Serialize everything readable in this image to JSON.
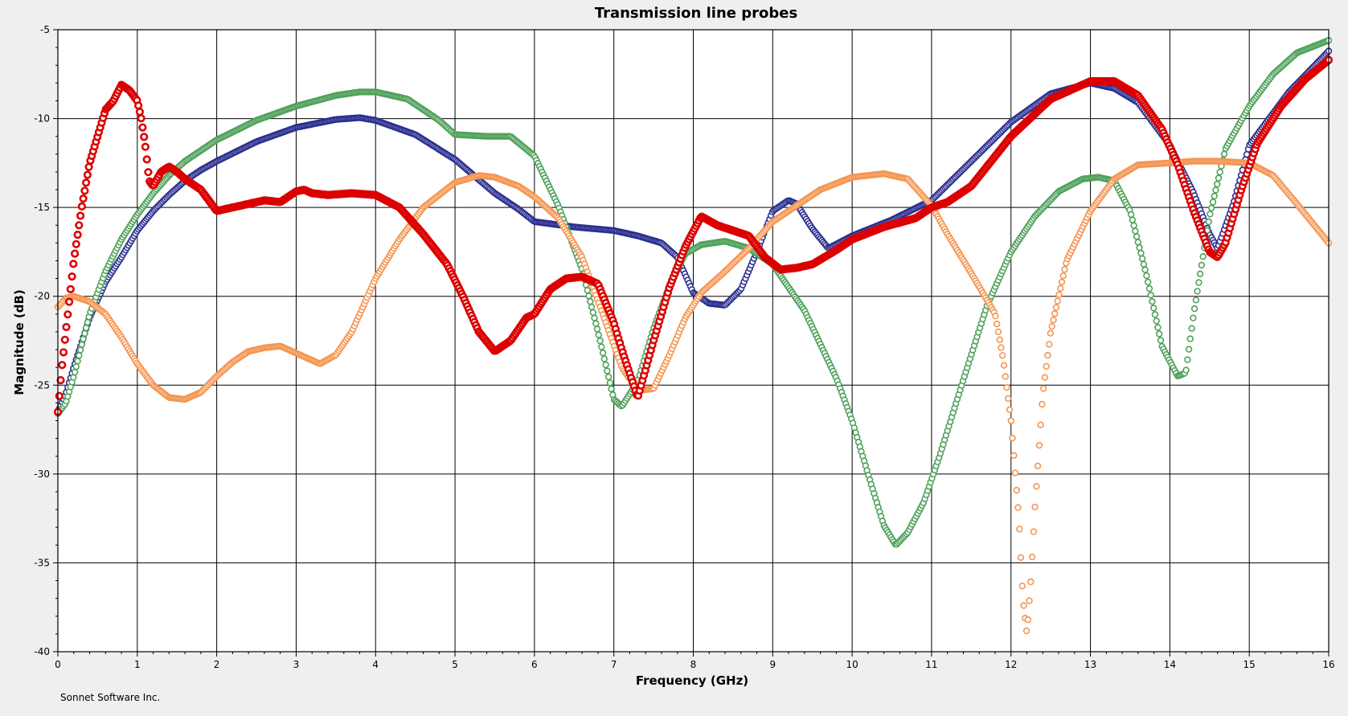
{
  "chart_data": {
    "type": "scatter",
    "title": "Transmission line probes",
    "xlabel": "Frequency (GHz)",
    "ylabel": "Magnitude (dB)",
    "xlim": [
      0,
      16
    ],
    "ylim": [
      -40,
      -5
    ],
    "xticks": [
      0,
      1,
      2,
      3,
      4,
      5,
      6,
      7,
      8,
      9,
      10,
      11,
      12,
      13,
      14,
      15,
      16
    ],
    "yticks": [
      -5,
      -10,
      -15,
      -20,
      -25,
      -30,
      -35,
      -40
    ],
    "grid": true,
    "marker": "open-circle",
    "series": [
      {
        "color": "#2b2f8f",
        "x": [
          0,
          0.1,
          0.2,
          0.4,
          0.6,
          0.8,
          1.0,
          1.2,
          1.4,
          1.6,
          1.8,
          2.0,
          2.5,
          3.0,
          3.5,
          3.8,
          4.0,
          4.5,
          5.0,
          5.5,
          5.8,
          6.0,
          6.5,
          7.0,
          7.3,
          7.6,
          7.8,
          8.0,
          8.2,
          8.4,
          8.6,
          8.8,
          9.0,
          9.2,
          9.3,
          9.5,
          9.7,
          10.0,
          10.5,
          11.0,
          11.5,
          12.0,
          12.5,
          13.0,
          13.3,
          13.6,
          14.0,
          14.3,
          14.5,
          14.6,
          14.8,
          15.0,
          15.5,
          16.0
        ],
        "y": [
          -26.5,
          -25.5,
          -24,
          -21.2,
          -19.2,
          -17.8,
          -16.3,
          -15.2,
          -14.3,
          -13.5,
          -12.9,
          -12.4,
          -11.3,
          -10.5,
          -10.05,
          -9.95,
          -10.1,
          -10.9,
          -12.3,
          -14.2,
          -15.1,
          -15.8,
          -16.1,
          -16.3,
          -16.6,
          -17.0,
          -17.8,
          -19.8,
          -20.4,
          -20.5,
          -19.6,
          -17.5,
          -15.2,
          -14.6,
          -14.8,
          -16.2,
          -17.3,
          -16.6,
          -15.7,
          -14.6,
          -12.4,
          -10.2,
          -8.6,
          -8.0,
          -8.3,
          -9.1,
          -11.5,
          -14.2,
          -16.5,
          -17.3,
          -14.8,
          -11.5,
          -8.5,
          -6.2
        ]
      },
      {
        "color": "#4fa15b",
        "x": [
          0,
          0.1,
          0.2,
          0.4,
          0.6,
          0.8,
          1.0,
          1.2,
          1.4,
          1.6,
          1.8,
          2.0,
          2.5,
          3.0,
          3.5,
          3.8,
          4.0,
          4.4,
          4.8,
          5.0,
          5.4,
          5.7,
          6.0,
          6.3,
          6.6,
          6.8,
          7.0,
          7.1,
          7.3,
          7.5,
          7.7,
          7.9,
          8.1,
          8.4,
          8.7,
          9.0,
          9.4,
          9.8,
          10.0,
          10.2,
          10.4,
          10.55,
          10.7,
          10.9,
          11.1,
          11.4,
          11.7,
          12.0,
          12.3,
          12.6,
          12.9,
          13.1,
          13.3,
          13.5,
          13.7,
          13.9,
          14.1,
          14.2,
          14.3,
          14.5,
          14.7,
          15.0,
          15.3,
          15.6,
          16.0
        ],
        "y": [
          -26.6,
          -26.0,
          -24.5,
          -21.0,
          -18.6,
          -16.8,
          -15.4,
          -14.2,
          -13.2,
          -12.4,
          -11.8,
          -11.2,
          -10.1,
          -9.3,
          -8.7,
          -8.5,
          -8.5,
          -8.9,
          -10.1,
          -10.9,
          -11.0,
          -11.0,
          -12.1,
          -14.9,
          -18.5,
          -22.0,
          -25.8,
          -26.2,
          -24.8,
          -21.8,
          -19.4,
          -17.6,
          -17.1,
          -16.9,
          -17.3,
          -18.2,
          -20.8,
          -24.6,
          -27.0,
          -30.0,
          -32.9,
          -34.0,
          -33.3,
          -31.6,
          -29.0,
          -24.7,
          -20.5,
          -17.5,
          -15.5,
          -14.1,
          -13.4,
          -13.3,
          -13.5,
          -15.2,
          -18.7,
          -22.8,
          -24.5,
          -24.3,
          -21.0,
          -15.5,
          -11.7,
          -9.3,
          -7.5,
          -6.3,
          -5.6
        ]
      },
      {
        "color": "#f59551",
        "x": [
          0,
          0.1,
          0.2,
          0.4,
          0.6,
          0.8,
          1.0,
          1.2,
          1.4,
          1.6,
          1.8,
          2.0,
          2.2,
          2.4,
          2.6,
          2.8,
          3.0,
          3.2,
          3.3,
          3.5,
          3.7,
          4.0,
          4.3,
          4.6,
          5.0,
          5.3,
          5.5,
          5.8,
          6.0,
          6.3,
          6.6,
          6.9,
          7.1,
          7.3,
          7.5,
          7.7,
          7.9,
          8.1,
          8.4,
          8.7,
          9.0,
          9.3,
          9.6,
          10.0,
          10.4,
          10.7,
          11.0,
          11.2,
          11.5,
          11.8,
          11.9,
          12.0,
          12.1,
          12.15,
          12.2,
          12.25,
          12.3,
          12.4,
          12.5,
          12.7,
          13.0,
          13.3,
          13.6,
          14.0,
          14.3,
          14.6,
          15.0,
          15.3,
          15.6,
          16.0
        ],
        "y": [
          -20.6,
          -20.1,
          -20.0,
          -20.3,
          -21.0,
          -22.3,
          -23.8,
          -25.0,
          -25.7,
          -25.8,
          -25.4,
          -24.5,
          -23.7,
          -23.1,
          -22.9,
          -22.8,
          -23.2,
          -23.6,
          -23.8,
          -23.3,
          -22.0,
          -19.0,
          -16.8,
          -15.0,
          -13.6,
          -13.2,
          -13.3,
          -13.8,
          -14.4,
          -15.6,
          -17.8,
          -21.5,
          -24.0,
          -25.3,
          -25.2,
          -23.3,
          -21.2,
          -19.8,
          -18.6,
          -17.3,
          -15.8,
          -14.9,
          -14.0,
          -13.3,
          -13.1,
          -13.4,
          -14.9,
          -16.5,
          -18.7,
          -21.0,
          -23.5,
          -27.0,
          -32.5,
          -37.0,
          -39.0,
          -36.0,
          -32.0,
          -25.5,
          -22.0,
          -18.0,
          -15.2,
          -13.4,
          -12.6,
          -12.5,
          -12.4,
          -12.4,
          -12.5,
          -13.2,
          -14.8,
          -17.0
        ]
      },
      {
        "color": "#dc0000",
        "x": [
          0,
          0.05,
          0.1,
          0.2,
          0.3,
          0.4,
          0.5,
          0.6,
          0.7,
          0.8,
          0.9,
          1.0,
          1.05,
          1.1,
          1.15,
          1.2,
          1.3,
          1.4,
          1.5,
          1.6,
          1.8,
          2.0,
          2.2,
          2.4,
          2.6,
          2.8,
          3.0,
          3.1,
          3.2,
          3.4,
          3.7,
          4.0,
          4.3,
          4.6,
          4.9,
          5.1,
          5.3,
          5.5,
          5.7,
          5.9,
          6.0,
          6.2,
          6.4,
          6.6,
          6.8,
          7.0,
          7.1,
          7.3,
          7.5,
          7.7,
          7.9,
          8.1,
          8.3,
          8.5,
          8.7,
          8.9,
          9.1,
          9.3,
          9.5,
          9.8,
          10.0,
          10.4,
          10.8,
          11.0,
          11.2,
          11.5,
          12.0,
          12.5,
          13.0,
          13.3,
          13.6,
          13.9,
          14.1,
          14.3,
          14.5,
          14.6,
          14.7,
          14.9,
          15.1,
          15.4,
          15.7,
          16.0
        ],
        "y": [
          -26.5,
          -24.0,
          -22.0,
          -18.0,
          -15.0,
          -12.5,
          -11.0,
          -9.5,
          -9.0,
          -8.1,
          -8.4,
          -9.0,
          -10.0,
          -11.5,
          -13.5,
          -13.8,
          -13.0,
          -12.7,
          -13.0,
          -13.4,
          -14.0,
          -15.2,
          -15.0,
          -14.8,
          -14.6,
          -14.7,
          -14.1,
          -14.0,
          -14.2,
          -14.3,
          -14.2,
          -14.3,
          -15.0,
          -16.5,
          -18.2,
          -20.0,
          -22.0,
          -23.1,
          -22.5,
          -21.2,
          -21.0,
          -19.6,
          -19.0,
          -18.9,
          -19.3,
          -21.5,
          -23.0,
          -25.7,
          -22.5,
          -19.5,
          -17.2,
          -15.5,
          -16.0,
          -16.3,
          -16.6,
          -17.8,
          -18.5,
          -18.4,
          -18.2,
          -17.4,
          -16.8,
          -16.1,
          -15.6,
          -15.0,
          -14.7,
          -13.8,
          -11.0,
          -8.9,
          -7.9,
          -7.9,
          -8.7,
          -10.6,
          -12.6,
          -15.2,
          -17.5,
          -17.8,
          -17.0,
          -14.0,
          -11.4,
          -9.3,
          -7.8,
          -6.7
        ]
      }
    ]
  },
  "footer": {
    "credit": "Sonnet Software Inc."
  }
}
